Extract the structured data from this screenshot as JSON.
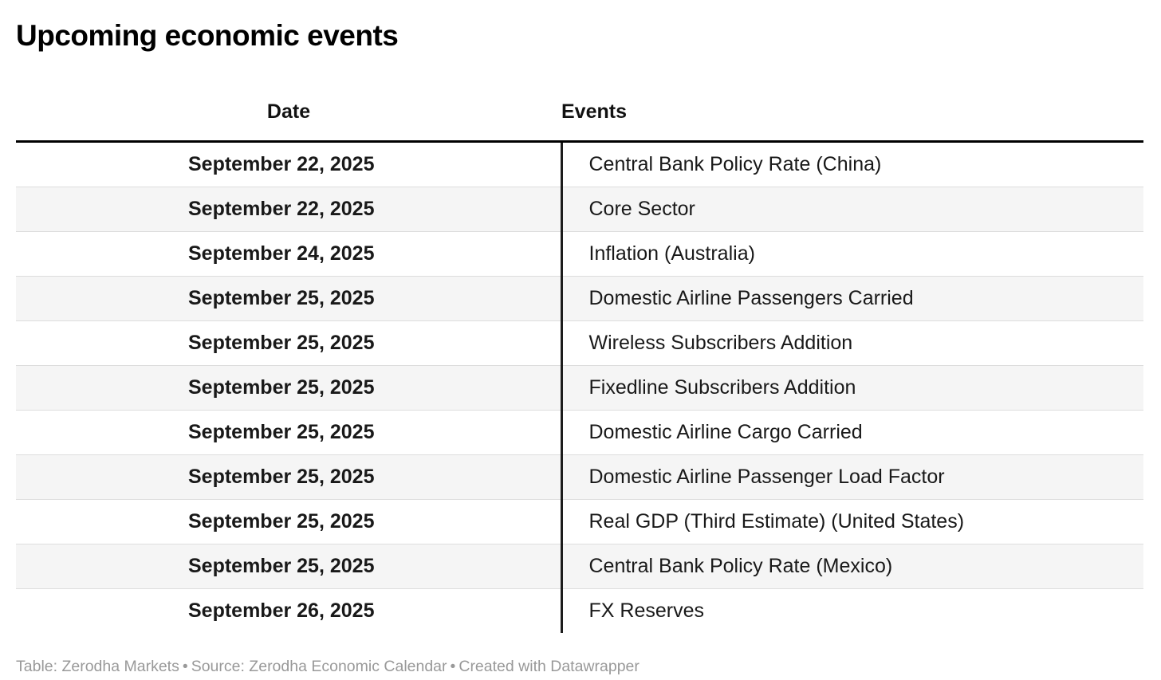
{
  "title": "Upcoming economic events",
  "table": {
    "columns": {
      "date": "Date",
      "events": "Events"
    },
    "rows": [
      {
        "date": "September 22, 2025",
        "event": "Central Bank Policy Rate (China)"
      },
      {
        "date": "September 22, 2025",
        "event": "Core Sector"
      },
      {
        "date": "September 24, 2025",
        "event": "Inflation (Australia)"
      },
      {
        "date": "September 25, 2025",
        "event": "Domestic Airline Passengers Carried"
      },
      {
        "date": "September 25, 2025",
        "event": "Wireless Subscribers Addition"
      },
      {
        "date": "September 25, 2025",
        "event": "Fixedline Subscribers Addition"
      },
      {
        "date": "September 25, 2025",
        "event": "Domestic Airline Cargo Carried"
      },
      {
        "date": "September 25, 2025",
        "event": "Domestic Airline Passenger Load Factor"
      },
      {
        "date": "September 25, 2025",
        "event": "Real GDP (Third Estimate) (United States)"
      },
      {
        "date": "September 25, 2025",
        "event": "Central Bank Policy Rate (Mexico)"
      },
      {
        "date": "September 26, 2025",
        "event": "FX Reserves"
      }
    ]
  },
  "footer": {
    "credit": "Table: Zerodha Markets",
    "source": "Source: Zerodha Economic Calendar",
    "created": "Created with Datawrapper",
    "separator": "•"
  },
  "colors": {
    "header_rule": "#000000",
    "column_divider": "#1c1c1c",
    "row_alt_background": "#f5f5f5",
    "row_separator": "#dddddd",
    "body_text": "#191919",
    "footer_text": "#999999"
  },
  "chart_data": {
    "type": "table",
    "title": "Upcoming economic events",
    "columns": [
      "Date",
      "Events"
    ],
    "rows": [
      [
        "September 22, 2025",
        "Central Bank Policy Rate (China)"
      ],
      [
        "September 22, 2025",
        "Core Sector"
      ],
      [
        "September 24, 2025",
        "Inflation (Australia)"
      ],
      [
        "September 25, 2025",
        "Domestic Airline Passengers Carried"
      ],
      [
        "September 25, 2025",
        "Wireless Subscribers Addition"
      ],
      [
        "September 25, 2025",
        "Fixedline Subscribers Addition"
      ],
      [
        "September 25, 2025",
        "Domestic Airline Cargo Carried"
      ],
      [
        "September 25, 2025",
        "Domestic Airline Passenger Load Factor"
      ],
      [
        "September 25, 2025",
        "Real GDP (Third Estimate) (United States)"
      ],
      [
        "September 25, 2025",
        "Central Bank Policy Rate (Mexico)"
      ],
      [
        "September 26, 2025",
        "FX Reserves"
      ]
    ]
  }
}
